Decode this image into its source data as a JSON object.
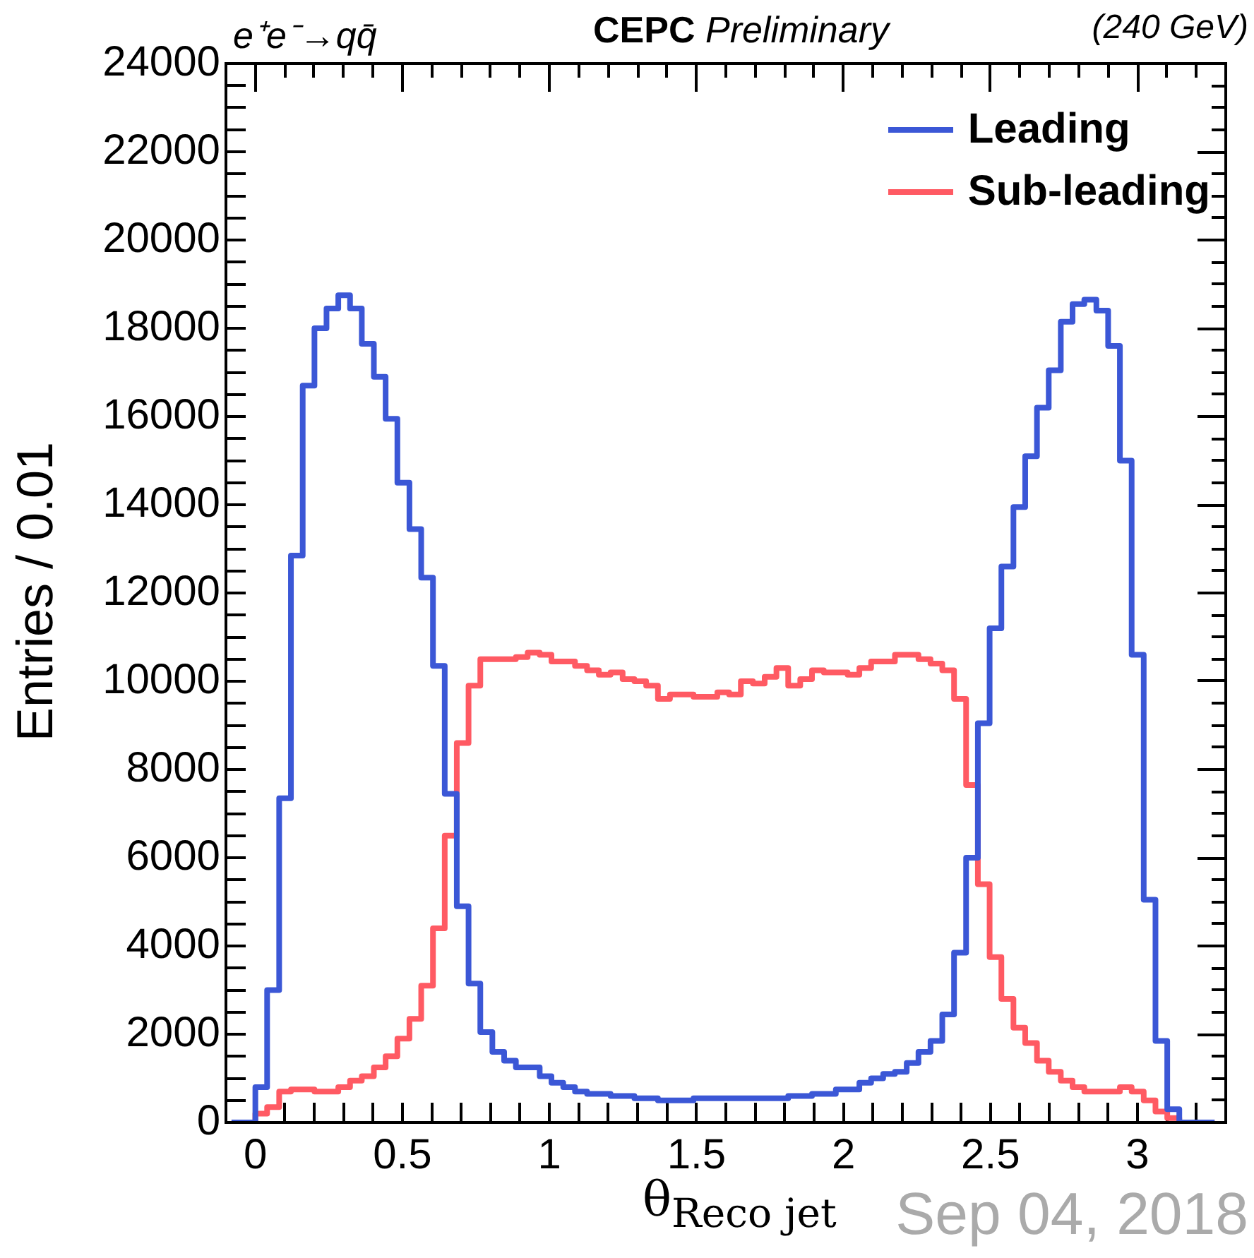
{
  "chart_data": {
    "type": "histogram",
    "xlabel": "θ$_{Reco jet}$",
    "ylabel": "Entries / 0.01",
    "legend": "top right",
    "annotations": [
      "e⁺e⁻→qq̄",
      "CEPC Preliminary",
      "(240 GeV)",
      "Sep 04, 2018"
    ],
    "bins": [
      -0.081,
      -0.04,
      0,
      0.04,
      0.081,
      0.121,
      0.161,
      0.201,
      0.242,
      0.282,
      0.322,
      0.362,
      0.403,
      0.443,
      0.483,
      0.524,
      0.564,
      0.604,
      0.644,
      0.685,
      0.725,
      0.765,
      0.806,
      0.846,
      0.886,
      0.926,
      0.967,
      1.007,
      1.047,
      1.087,
      1.128,
      1.168,
      1.208,
      1.249,
      1.289,
      1.329,
      1.369,
      1.41,
      1.45,
      1.49,
      1.531,
      1.571,
      1.611,
      1.651,
      1.692,
      1.732,
      1.772,
      1.812,
      1.853,
      1.893,
      1.933,
      1.974,
      2.014,
      2.054,
      2.094,
      2.135,
      2.175,
      2.215,
      2.255,
      2.296,
      2.336,
      2.376,
      2.417,
      2.457,
      2.497,
      2.537,
      2.578,
      2.618,
      2.658,
      2.698,
      2.739,
      2.779,
      2.819,
      2.86,
      2.9,
      2.94,
      2.98,
      3.021,
      3.061,
      3.101,
      3.142,
      3.182,
      3.222,
      3.262
    ],
    "series": [
      {
        "name": "Leading",
        "color": "#3b57d6",
        "values": [
          0,
          0,
          800,
          3000,
          7350,
          12850,
          16700,
          18000,
          18450,
          18750,
          18450,
          17650,
          16900,
          15950,
          14500,
          13450,
          12350,
          10350,
          7450,
          4900,
          3150,
          2050,
          1600,
          1400,
          1250,
          1250,
          1050,
          900,
          800,
          700,
          650,
          650,
          600,
          600,
          550,
          550,
          500,
          500,
          500,
          550,
          550,
          550,
          550,
          550,
          550,
          550,
          550,
          600,
          600,
          650,
          650,
          750,
          750,
          900,
          1000,
          1100,
          1150,
          1350,
          1600,
          1850,
          2450,
          3850,
          6000,
          9050,
          11200,
          12600,
          13950,
          15100,
          16200,
          17050,
          18150,
          18550,
          18650,
          18400,
          17600,
          15000,
          10600,
          5050,
          1850,
          300,
          0,
          0,
          0
        ]
      },
      {
        "name": "Sub-leading",
        "color": "#ff5a63",
        "values": [
          0,
          0,
          200,
          350,
          700,
          750,
          750,
          700,
          700,
          800,
          950,
          1050,
          1250,
          1500,
          1900,
          2350,
          3100,
          4400,
          6500,
          8600,
          9900,
          10500,
          10500,
          10500,
          10550,
          10650,
          10600,
          10450,
          10450,
          10350,
          10250,
          10150,
          10200,
          10050,
          10000,
          9900,
          9600,
          9700,
          9700,
          9650,
          9650,
          9750,
          9700,
          10000,
          9950,
          10100,
          10300,
          9900,
          10050,
          10250,
          10200,
          10200,
          10150,
          10300,
          10450,
          10450,
          10600,
          10600,
          10500,
          10400,
          10250,
          9600,
          7650,
          5400,
          3750,
          2800,
          2150,
          1800,
          1400,
          1150,
          950,
          800,
          700,
          700,
          700,
          800,
          700,
          500,
          250,
          100,
          0,
          0,
          0
        ]
      }
    ],
    "xlim": [
      -0.1,
      3.3
    ],
    "xticks": [
      {
        "value": -0.1,
        "label": null
      },
      0,
      {
        "value": 0.1,
        "label": null
      },
      {
        "value": 0.2,
        "label": null
      },
      {
        "value": 0.3,
        "label": null
      },
      {
        "value": 0.4,
        "label": null
      },
      0.5,
      {
        "value": 0.6,
        "label": null
      },
      {
        "value": 0.7,
        "label": null
      },
      {
        "value": 0.8,
        "label": null
      },
      {
        "value": 0.9,
        "label": null
      },
      1,
      {
        "value": 1.1,
        "label": null
      },
      {
        "value": 1.2,
        "label": null
      },
      {
        "value": 1.3,
        "label": null
      },
      {
        "value": 1.4,
        "label": null
      },
      1.5,
      {
        "value": 1.6,
        "label": null
      },
      {
        "value": 1.7,
        "label": null
      },
      {
        "value": 1.8,
        "label": null
      },
      {
        "value": 1.9,
        "label": null
      },
      2,
      {
        "value": 2.1,
        "label": null
      },
      {
        "value": 2.2,
        "label": null
      },
      {
        "value": 2.3,
        "label": null
      },
      {
        "value": 2.4,
        "label": null
      },
      2.5,
      {
        "value": 2.6,
        "label": null
      },
      {
        "value": 2.7,
        "label": null
      },
      {
        "value": 2.8,
        "label": null
      },
      {
        "value": 2.9,
        "label": null
      },
      3,
      {
        "value": 3.1,
        "label": null
      },
      {
        "value": 3.2,
        "label": null
      },
      {
        "value": 3.3,
        "label": null
      }
    ],
    "ylim": [
      0,
      24000
    ],
    "yticks": [
      0,
      {
        "value": 500,
        "label": null
      },
      {
        "value": 1000,
        "label": null
      },
      {
        "value": 1500,
        "label": null
      },
      2000,
      {
        "value": 2500,
        "label": null
      },
      {
        "value": 3000,
        "label": null
      },
      {
        "value": 3500,
        "label": null
      },
      4000,
      {
        "value": 4500,
        "label": null
      },
      {
        "value": 5000,
        "label": null
      },
      {
        "value": 5500,
        "label": null
      },
      6000,
      {
        "value": 6500,
        "label": null
      },
      {
        "value": 7000,
        "label": null
      },
      {
        "value": 7500,
        "label": null
      },
      8000,
      {
        "value": 8500,
        "label": null
      },
      {
        "value": 9000,
        "label": null
      },
      {
        "value": 9500,
        "label": null
      },
      10000,
      {
        "value": 10500,
        "label": null
      },
      {
        "value": 11000,
        "label": null
      },
      {
        "value": 11500,
        "label": null
      },
      12000,
      {
        "value": 12500,
        "label": null
      },
      {
        "value": 13000,
        "label": null
      },
      {
        "value": 13500,
        "label": null
      },
      14000,
      {
        "value": 14500,
        "label": null
      },
      {
        "value": 15000,
        "label": null
      },
      {
        "value": 15500,
        "label": null
      },
      16000,
      {
        "value": 16500,
        "label": null
      },
      {
        "value": 17000,
        "label": null
      },
      {
        "value": 17500,
        "label": null
      },
      18000,
      {
        "value": 18500,
        "label": null
      },
      {
        "value": 19000,
        "label": null
      },
      {
        "value": 19500,
        "label": null
      },
      20000,
      {
        "value": 20500,
        "label": null
      },
      {
        "value": 21000,
        "label": null
      },
      {
        "value": 21500,
        "label": null
      },
      22000,
      {
        "value": 22500,
        "label": null
      },
      {
        "value": 23000,
        "label": null
      },
      {
        "value": 23500,
        "label": null
      },
      24000
    ]
  }
}
